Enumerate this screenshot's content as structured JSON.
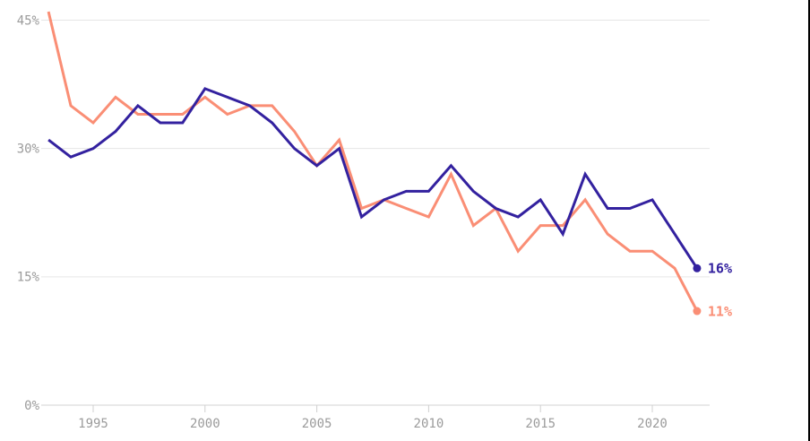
{
  "chart_data": {
    "type": "line",
    "x": [
      1993,
      1994,
      1995,
      1996,
      1997,
      1998,
      1999,
      2000,
      2001,
      2002,
      2003,
      2004,
      2005,
      2006,
      2007,
      2008,
      2009,
      2010,
      2011,
      2012,
      2013,
      2014,
      2015,
      2016,
      2017,
      2018,
      2019,
      2020,
      2021,
      2022
    ],
    "series": [
      {
        "name": "salmon-series",
        "color": "#fa8e75",
        "end_label": "11%",
        "values": [
          46,
          35,
          33,
          36,
          34,
          34,
          34,
          36,
          34,
          35,
          35,
          32,
          28,
          31,
          23,
          24,
          23,
          22,
          27,
          21,
          23,
          18,
          21,
          21,
          24,
          20,
          18,
          18,
          16,
          11
        ]
      },
      {
        "name": "dark-blue-series",
        "color": "#33219f",
        "end_label": "16%",
        "values": [
          31,
          29,
          30,
          32,
          35,
          33,
          33,
          37,
          36,
          35,
          33,
          30,
          28,
          30,
          22,
          24,
          25,
          25,
          28,
          25,
          23,
          22,
          24,
          20,
          27,
          23,
          23,
          24,
          20,
          16
        ]
      }
    ],
    "y_ticks": [
      {
        "value": 45,
        "label": "45%"
      },
      {
        "value": 30,
        "label": "30%"
      },
      {
        "value": 15,
        "label": "15%"
      },
      {
        "value": 0,
        "label": "0%"
      }
    ],
    "x_ticks": [
      {
        "value": 1995,
        "label": "1995"
      },
      {
        "value": 2000,
        "label": "2000"
      },
      {
        "value": 2005,
        "label": "2005"
      },
      {
        "value": 2010,
        "label": "2010"
      },
      {
        "value": 2015,
        "label": "2015"
      },
      {
        "value": 2020,
        "label": "2020"
      }
    ],
    "ylim": [
      0,
      45
    ],
    "xlim": [
      1993,
      2022
    ],
    "grid": "horizontal",
    "legend": "end-of-line-labels"
  },
  "colors": {
    "background": "#ffffff",
    "gridline": "#e6e6e6",
    "axis_line": "#dcdcdc",
    "tick_mark": "#d0d0d0",
    "tick_text": "#9b9b9b",
    "right_border": "#000000"
  }
}
